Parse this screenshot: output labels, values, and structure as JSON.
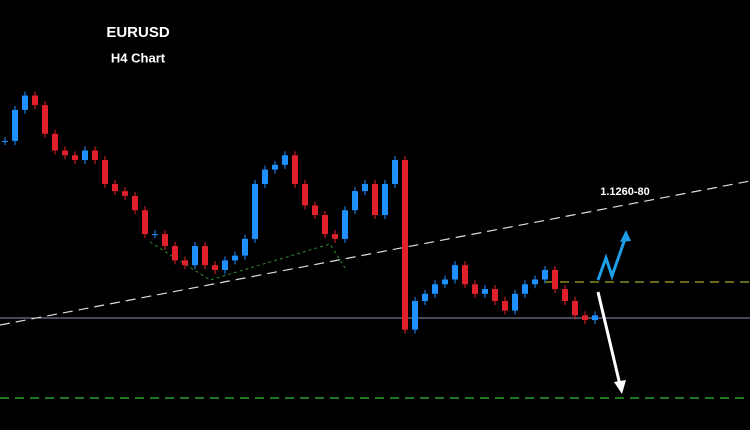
{
  "chart_data": {
    "type": "candlestick",
    "title": "EURUSD",
    "subtitle": "H4 Chart",
    "annotation": "1.1260-80",
    "values": [
      1.1271,
      1.1284,
      1.129,
      1.1286,
      1.1274,
      1.1267,
      1.1265,
      1.1263,
      1.1267,
      1.1263,
      1.1253,
      1.125,
      1.1248,
      1.1242,
      1.1232,
      1.1232,
      1.1227,
      1.1221,
      1.1219,
      1.1227,
      1.1219,
      1.1217,
      1.1221,
      1.1223,
      1.123,
      1.1253,
      1.1259,
      1.1261,
      1.1265,
      1.1253,
      1.1244,
      1.124,
      1.1232,
      1.123,
      1.1242,
      1.125,
      1.1253,
      1.124,
      1.1253,
      1.1263,
      1.1192,
      1.1204,
      1.1207,
      1.1211,
      1.1213,
      1.1219,
      1.1211,
      1.1207,
      1.1209,
      1.1204,
      1.12,
      1.1207,
      1.1211,
      1.1213,
      1.1217,
      1.1209,
      1.1204,
      1.1198,
      1.1196,
      1.1198
    ],
    "ylim": [
      1.115,
      1.133
    ],
    "up_color": "#1e90ff",
    "down_color": "#e0202a"
  }
}
